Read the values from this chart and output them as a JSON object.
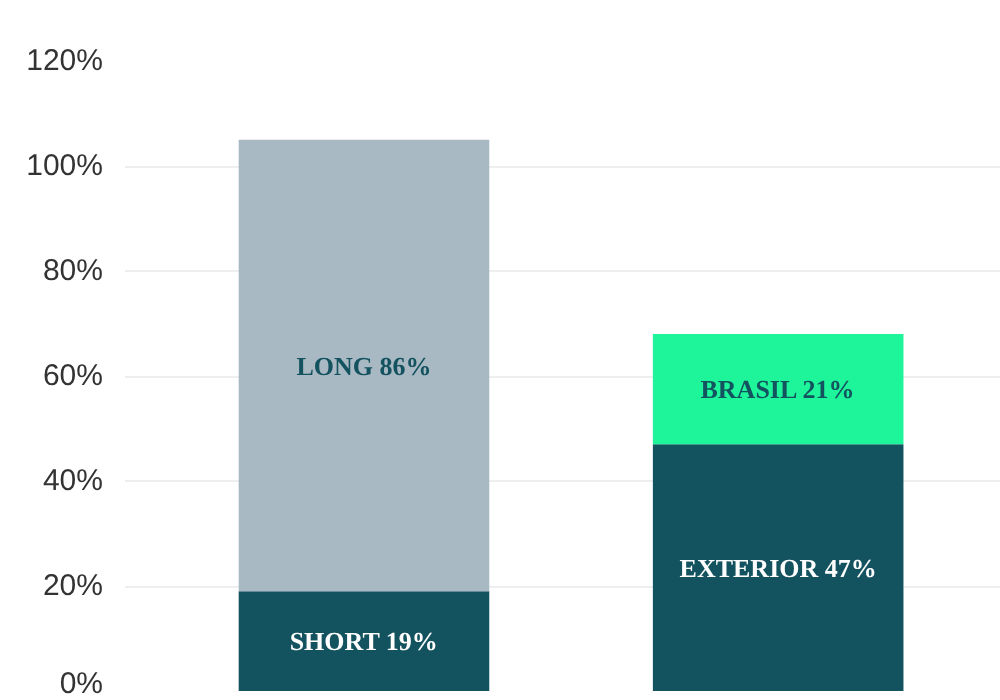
{
  "chart_data": {
    "type": "bar",
    "stacked": true,
    "categories": [
      null,
      null
    ],
    "series": [
      {
        "colors": [
          "#13525f",
          "#13525f"
        ],
        "values": [
          19,
          47
        ],
        "value_labels": [
          "SHORT 19%",
          "EXTERIOR 47%"
        ]
      },
      {
        "colors": [
          "#a9b9c4",
          "#1ef59b"
        ],
        "values": [
          86,
          21
        ],
        "value_labels": [
          "LONG 86%",
          "BRASIL 21%"
        ]
      }
    ],
    "ylim": [
      0,
      120
    ],
    "yticks": [
      {
        "value": 0,
        "label": "0%"
      },
      {
        "value": 20,
        "label": "20%"
      },
      {
        "value": 40,
        "label": "40%"
      },
      {
        "value": 60,
        "label": "60%"
      },
      {
        "value": 80,
        "label": "80%"
      },
      {
        "value": 100,
        "label": "100%"
      },
      {
        "value": 120,
        "label": "120%"
      }
    ],
    "grid": "y"
  }
}
